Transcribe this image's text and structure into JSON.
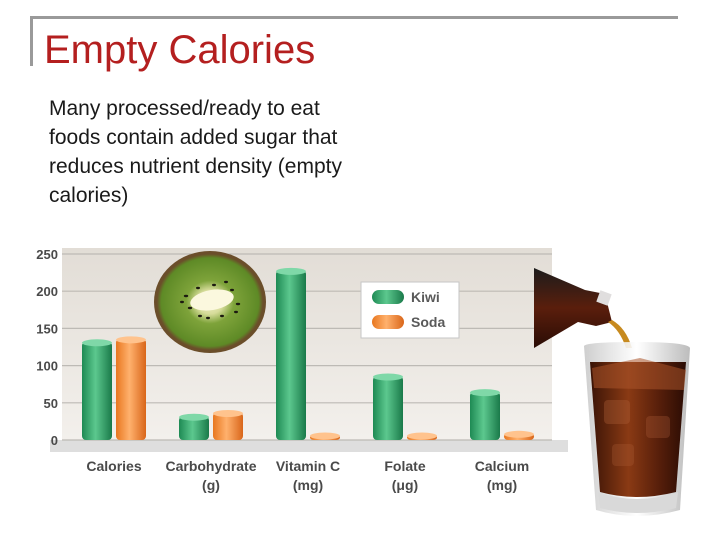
{
  "slide": {
    "title": "Empty Calories",
    "body": "Many processed/ready to eat foods contain added sugar that reduces nutrient density (empty calories)"
  },
  "chart_data": {
    "type": "bar",
    "categories": [
      "Calories",
      "Carbohydrate",
      "Vitamin C",
      "Folate",
      "Calcium"
    ],
    "category_units": [
      "",
      "(g)",
      "(mg)",
      "(μg)",
      "(mg)"
    ],
    "series": [
      {
        "name": "Kiwi",
        "values": [
          132,
          32,
          228,
          86,
          65
        ],
        "color": "#2ea56a"
      },
      {
        "name": "Soda",
        "values": [
          136,
          37,
          0,
          0,
          9
        ],
        "color": "#f7943c"
      }
    ],
    "ylim": [
      0,
      250
    ],
    "yticks": [
      0,
      50,
      100,
      150,
      200,
      250
    ],
    "grid": true,
    "legend_position": "top-right",
    "images": [
      "kiwi-slice",
      "soda-glass"
    ]
  }
}
